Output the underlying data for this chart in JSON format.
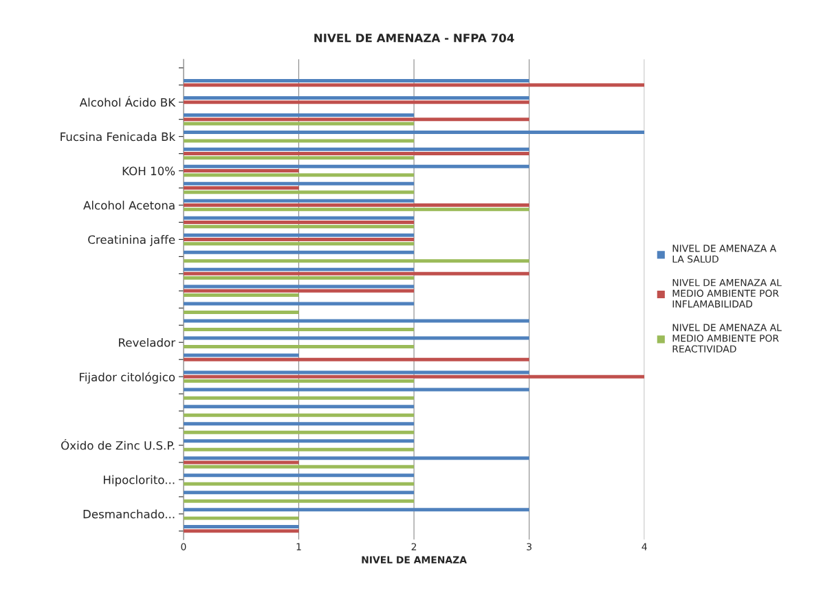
{
  "chart_data": {
    "type": "bar",
    "orientation": "horizontal",
    "title": "NIVEL DE AMENAZA - NFPA 704",
    "xlabel": "NIVEL DE AMENAZA",
    "categories": [
      null,
      null,
      "Alcohol Ácido BK",
      null,
      "Fucsina Fenicada Bk",
      null,
      "KOH 10%",
      null,
      "Alcohol Acetona",
      null,
      "Creatinina jaffe",
      null,
      null,
      null,
      null,
      null,
      "Revelador",
      null,
      "Fijador citológico",
      null,
      null,
      null,
      "Óxido de Zinc U.S.P.",
      null,
      "Hipoclorito...",
      null,
      "Desmanchado...",
      null
    ],
    "series": [
      {
        "name": "NIVEL DE AMENAZA A LA SALUD",
        "color": "#4f81bd",
        "values": [
          0,
          3,
          3,
          2,
          4,
          3,
          3,
          2,
          2,
          2,
          2,
          2,
          2,
          2,
          2,
          3,
          3,
          1,
          3,
          3,
          2,
          2,
          2,
          3,
          2,
          2,
          3,
          1
        ]
      },
      {
        "name": "NIVEL DE AMENAZA AL MEDIO AMBIENTE POR INFLAMABILIDAD",
        "color": "#c0504d",
        "values": [
          0,
          4,
          3,
          3,
          0,
          3,
          1,
          1,
          3,
          2,
          2,
          0,
          3,
          2,
          0,
          0,
          0,
          3,
          4,
          0,
          0,
          0,
          0,
          1,
          0,
          0,
          0,
          1
        ]
      },
      {
        "name": "NIVEL DE AMENAZA AL MEDIO AMBIENTE POR REACTIVIDAD",
        "color": "#9bbb59",
        "values": [
          0,
          0,
          0,
          2,
          2,
          2,
          2,
          2,
          3,
          2,
          2,
          3,
          2,
          1,
          1,
          2,
          2,
          0,
          2,
          2,
          2,
          2,
          2,
          2,
          2,
          2,
          1,
          0
        ]
      }
    ],
    "xlim": [
      0,
      4
    ],
    "xticks": [
      0,
      1,
      2,
      3,
      4
    ],
    "grid": "x",
    "legend": "right"
  }
}
